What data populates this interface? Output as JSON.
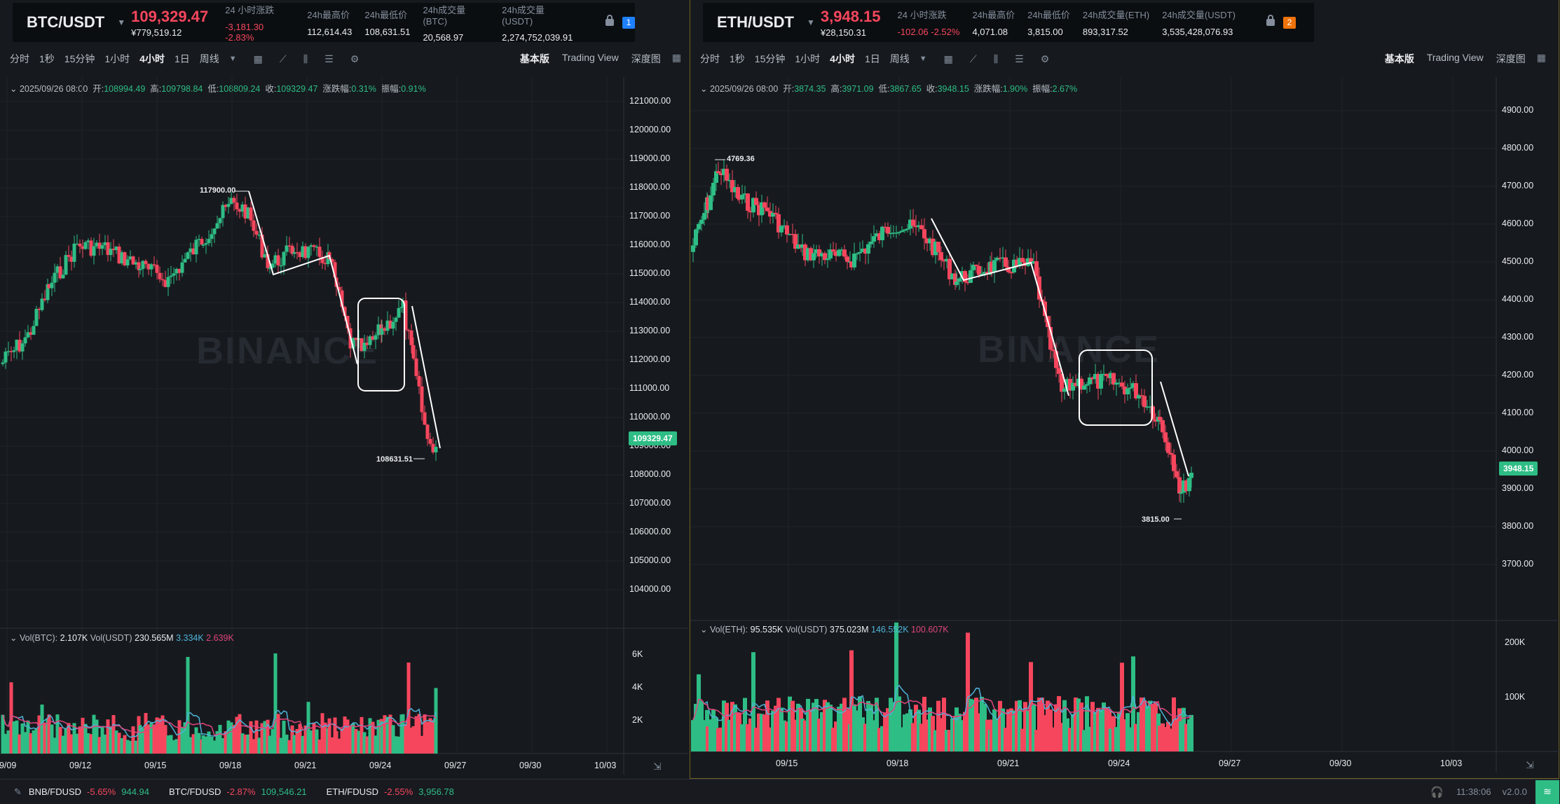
{
  "btc": {
    "symbol": "BTC/USDT",
    "price": "109,329.47",
    "price_cny": "¥779,519.12",
    "stats": [
      {
        "label": "24 小时涨跌",
        "value": "-3,181.30 -2.83%",
        "neg": true
      },
      {
        "label": "24h最高价",
        "value": "112,614.43"
      },
      {
        "label": "24h最低价",
        "value": "108,631.51"
      },
      {
        "label": "24h成交量(BTC)",
        "value": "20,568.97"
      },
      {
        "label": "24h成交量(USDT)",
        "value": "2,274,752,039.91"
      }
    ],
    "badge": "1",
    "ohlc": {
      "date": "2025/09/26 08:00",
      "open_label": "开:",
      "open": "108994.49",
      "high_label": "高:",
      "high": "109798.84",
      "low_label": "低:",
      "low": "108809.24",
      "close_label": "收:",
      "close": "109329.47",
      "chg_label": "涨跌幅:",
      "chg": "0.31%",
      "amp_label": "振幅:",
      "amp": "0.91%"
    },
    "vol_legend": {
      "l1": "Vol(BTC):",
      "v1": "2.107K",
      "l2": "Vol(USDT)",
      "v2": "230.565M",
      "v3": "3.334K",
      "v4": "2.639K"
    },
    "y_labels": [
      "121000.00",
      "120000.00",
      "119000.00",
      "118000.00",
      "117000.00",
      "116000.00",
      "115000.00",
      "114000.00",
      "113000.00",
      "112000.00",
      "111000.00",
      "110000.00",
      "109000.00",
      "108000.00",
      "107000.00",
      "106000.00",
      "105000.00",
      "104000.00"
    ],
    "vol_labels": [
      "6K",
      "4K",
      "2K"
    ],
    "x_labels": [
      "09/09",
      "09/12",
      "09/15",
      "09/18",
      "09/21",
      "09/24",
      "09/27",
      "09/30",
      "10/03"
    ],
    "current_tag": "109329.47",
    "high_ann": "117900.00",
    "low_ann": "108631.51"
  },
  "eth": {
    "symbol": "ETH/USDT",
    "price": "3,948.15",
    "price_cny": "¥28,150.31",
    "stats": [
      {
        "label": "24 小时涨跌",
        "value": "-102.06 -2.52%",
        "neg": true
      },
      {
        "label": "24h最高价",
        "value": "4,071.08"
      },
      {
        "label": "24h最低价",
        "value": "3,815.00"
      },
      {
        "label": "24h成交量(ETH)",
        "value": "893,317.52"
      },
      {
        "label": "24h成交量(USDT)",
        "value": "3,535,428,076.93"
      }
    ],
    "badge": "2",
    "ohlc": {
      "date": "2025/09/26 08:00",
      "open_label": "开:",
      "open": "3874.35",
      "high_label": "高:",
      "high": "3971.09",
      "low_label": "低:",
      "low": "3867.65",
      "close_label": "收:",
      "close": "3948.15",
      "chg_label": "涨跌幅:",
      "chg": "1.90%",
      "amp_label": "振幅:",
      "amp": "2.67%"
    },
    "vol_legend": {
      "l1": "Vol(ETH):",
      "v1": "95.535K",
      "l2": "Vol(USDT)",
      "v2": "375.023M",
      "v3": "146.552K",
      "v4": "100.607K"
    },
    "y_labels": [
      "4900.00",
      "4800.00",
      "4700.00",
      "4600.00",
      "4500.00",
      "4400.00",
      "4300.00",
      "4200.00",
      "4100.00",
      "4000.00",
      "3900.00",
      "3800.00",
      "3700.00"
    ],
    "vol_labels": [
      "200K",
      "100K"
    ],
    "x_labels": [
      "09/15",
      "09/18",
      "09/21",
      "09/24",
      "09/27",
      "09/30",
      "10/03"
    ],
    "current_tag": "3948.15",
    "high_ann": "4769.36",
    "low_ann": "3815.00"
  },
  "toolbar": {
    "intervals": [
      "分时",
      "1秒",
      "15分钟",
      "1小时",
      "4小时",
      "1日",
      "周线"
    ],
    "active": "4小时",
    "views": [
      "基本版",
      "Trading View",
      "深度图"
    ]
  },
  "watermark": "BINANCE",
  "colors": {
    "up": "#2ebd85",
    "down": "#f6465d",
    "bg": "#161a1e"
  },
  "bottom": {
    "tickers": [
      {
        "sym": "BNB/FDUSD",
        "chg": "-5.65%",
        "price": "944.94"
      },
      {
        "sym": "BTC/FDUSD",
        "chg": "-2.87%",
        "price": "109,546.21",
        "up": true
      },
      {
        "sym": "ETH/FDUSD",
        "chg": "-2.55%",
        "price": "3,956.78",
        "up": true
      }
    ],
    "time": "11:38:06",
    "version": "v2.0.0"
  }
}
